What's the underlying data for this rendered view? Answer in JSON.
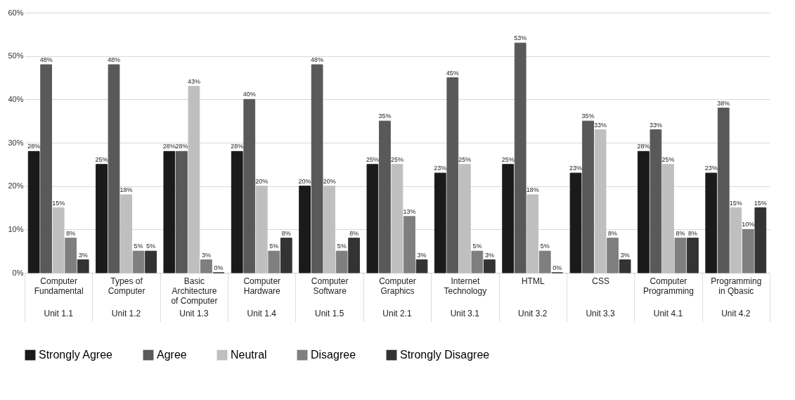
{
  "chart_data": {
    "type": "bar",
    "categories": [
      "Computer Fundamental",
      "Types of Computer",
      "Basic Architecture of Computer",
      "Computer Hardware",
      "Computer Software",
      "Computer Graphics",
      "Internet Technology",
      "HTML",
      "CSS",
      "Computer Programming",
      "Programming in Qbasic"
    ],
    "series": [
      {
        "name": "Strongly Agree",
        "color": "#1a1a1a",
        "values": [
          28,
          25,
          28,
          28,
          20,
          25,
          23,
          25,
          23,
          28,
          23
        ],
        "value_labels": [
          "28%",
          "25%",
          "28%",
          "28%",
          "20%",
          "25%",
          "23%",
          "25%",
          "23%",
          "28%",
          "23%"
        ]
      },
      {
        "name": "Agree",
        "color": "#595959",
        "values": [
          48,
          48,
          28,
          40,
          48,
          35,
          45,
          53,
          35,
          33,
          38
        ],
        "value_labels": [
          "48%",
          "48%",
          "28%",
          "40%",
          "48%",
          "35%",
          "45%",
          "53%",
          "35%",
          "33%",
          "38%"
        ]
      },
      {
        "name": "Neutral",
        "color": "#bfbfbf",
        "values": [
          15,
          18,
          43,
          20,
          20,
          25,
          25,
          18,
          33,
          25,
          15
        ],
        "value_labels": [
          "15%",
          "18%",
          "43%",
          "20%",
          "20%",
          "25%",
          "25%",
          "18%",
          "33%",
          "25%",
          "15%"
        ]
      },
      {
        "name": "Disagree",
        "color": "#7f7f7f",
        "values": [
          8,
          5,
          3,
          5,
          5,
          13,
          5,
          5,
          8,
          8,
          10
        ],
        "value_labels": [
          "8%",
          "5%",
          "3%",
          "5%",
          "5%",
          "13%",
          "5%",
          "5%",
          "8%",
          "8%",
          "10%"
        ]
      },
      {
        "name": "Strongly Disagree",
        "color": "#333333",
        "values": [
          3,
          5,
          0,
          8,
          8,
          3,
          3,
          0,
          3,
          8,
          15
        ],
        "value_labels": [
          "3%",
          "5%",
          "0%",
          "8%",
          "8%",
          "3%",
          "3%",
          "0%",
          "3%",
          "8%",
          "15%"
        ]
      }
    ],
    "ylim": [
      0,
      60
    ],
    "yticks": [
      {
        "value": 0,
        "label": "0%"
      },
      {
        "value": 10,
        "label": "10%"
      },
      {
        "value": 20,
        "label": "20%"
      },
      {
        "value": 30,
        "label": "30%"
      },
      {
        "value": 40,
        "label": "40%"
      },
      {
        "value": 50,
        "label": "50%"
      },
      {
        "value": 60,
        "label": "60%"
      }
    ],
    "grid": "y",
    "legend": "bottom",
    "annotations": [
      "Unit 1.1",
      "Unit 1.2",
      "Unit 1.3",
      "Unit 1.4",
      "Unit 1.5",
      "Unit 2.1",
      "Unit 3.1",
      "Unit 3.2",
      "Unit 3.3",
      "Unit 4.1",
      "Unit 4.2"
    ]
  }
}
